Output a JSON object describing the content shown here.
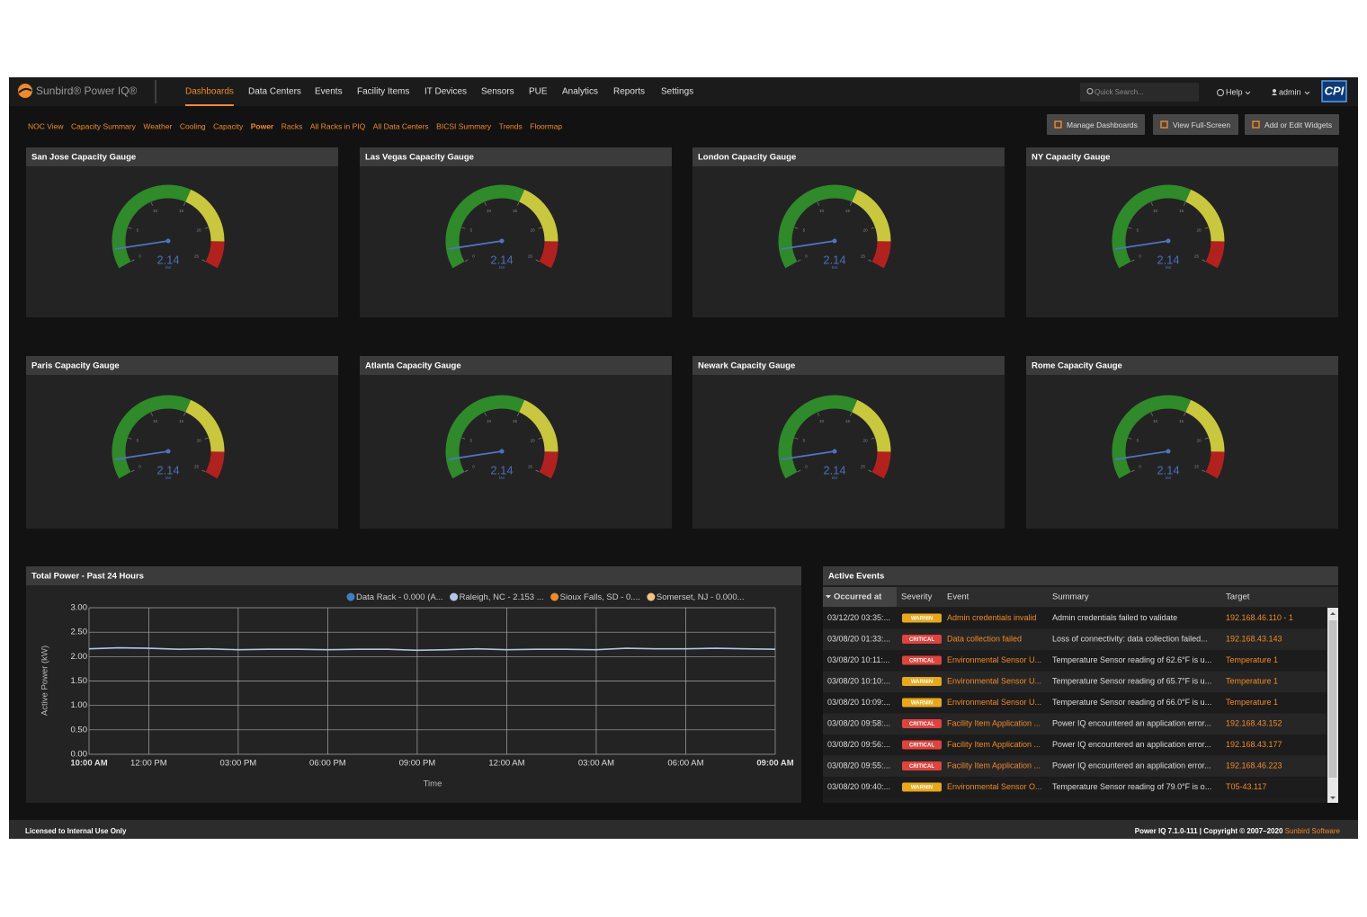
{
  "nav": {
    "logo": "Sunbird® Power IQ®",
    "items": [
      "Dashboards",
      "Data Centers",
      "Events",
      "Facility Items",
      "IT Devices",
      "Sensors",
      "PUE",
      "Analytics",
      "Reports",
      "Settings"
    ],
    "active": 0,
    "search": "Quick Search...",
    "help": "Help",
    "user": "admin",
    "brand": "CPI"
  },
  "subnav": {
    "links": [
      "NOC View",
      "Capacity Summary",
      "Weather",
      "Cooling",
      "Capacity",
      "Power",
      "Racks",
      "All Racks in PIQ",
      "All Data Centers",
      "BICSI Summary",
      "Trends",
      "Floormap"
    ],
    "active": 5,
    "buttons": [
      "Manage Dashboards",
      "View Full-Screen",
      "Add or Edit Widgets"
    ]
  },
  "chart_data": [
    {
      "type": "gauge",
      "title": "San Jose Capacity Gauge",
      "value": 2.14,
      "unit": "kW",
      "ylim": [
        0,
        25
      ],
      "yticks": [
        0,
        5,
        10,
        15,
        20,
        25
      ],
      "bands": [
        {
          "from": 0,
          "to": 15,
          "color": "#2f8a2a"
        },
        {
          "from": 15,
          "to": 22,
          "color": "#c9c73c"
        },
        {
          "from": 22,
          "to": 25,
          "color": "#b3211f"
        }
      ]
    },
    {
      "type": "gauge",
      "title": "Las Vegas Capacity Gauge",
      "value": 2.14,
      "unit": "kW",
      "ylim": [
        0,
        25
      ],
      "yticks": [
        0,
        5,
        10,
        15,
        20,
        25
      ],
      "bands": [
        {
          "from": 0,
          "to": 15,
          "color": "#2f8a2a"
        },
        {
          "from": 15,
          "to": 22,
          "color": "#c9c73c"
        },
        {
          "from": 22,
          "to": 25,
          "color": "#b3211f"
        }
      ]
    },
    {
      "type": "gauge",
      "title": "London Capacity Gauge",
      "value": 2.14,
      "unit": "kW",
      "ylim": [
        0,
        25
      ],
      "yticks": [
        0,
        5,
        10,
        15,
        20,
        25
      ],
      "bands": [
        {
          "from": 0,
          "to": 15,
          "color": "#2f8a2a"
        },
        {
          "from": 15,
          "to": 22,
          "color": "#c9c73c"
        },
        {
          "from": 22,
          "to": 25,
          "color": "#b3211f"
        }
      ]
    },
    {
      "type": "gauge",
      "title": "NY Capacity Gauge",
      "value": 2.14,
      "unit": "kW",
      "ylim": [
        0,
        25
      ],
      "yticks": [
        0,
        5,
        10,
        15,
        20,
        25
      ],
      "bands": [
        {
          "from": 0,
          "to": 15,
          "color": "#2f8a2a"
        },
        {
          "from": 15,
          "to": 22,
          "color": "#c9c73c"
        },
        {
          "from": 22,
          "to": 25,
          "color": "#b3211f"
        }
      ]
    },
    {
      "type": "gauge",
      "title": "Paris Capacity Gauge",
      "value": 2.14,
      "unit": "kW",
      "ylim": [
        0,
        25
      ],
      "yticks": [
        0,
        5,
        10,
        15,
        20,
        25
      ],
      "bands": [
        {
          "from": 0,
          "to": 15,
          "color": "#2f8a2a"
        },
        {
          "from": 15,
          "to": 22,
          "color": "#c9c73c"
        },
        {
          "from": 22,
          "to": 25,
          "color": "#b3211f"
        }
      ]
    },
    {
      "type": "gauge",
      "title": "Atlanta Capacity Gauge",
      "value": 2.14,
      "unit": "kW",
      "ylim": [
        0,
        25
      ],
      "yticks": [
        0,
        5,
        10,
        15,
        20,
        25
      ],
      "bands": [
        {
          "from": 0,
          "to": 15,
          "color": "#2f8a2a"
        },
        {
          "from": 15,
          "to": 22,
          "color": "#c9c73c"
        },
        {
          "from": 22,
          "to": 25,
          "color": "#b3211f"
        }
      ]
    },
    {
      "type": "gauge",
      "title": "Newark Capacity Gauge",
      "value": 2.14,
      "unit": "kW",
      "ylim": [
        0,
        25
      ],
      "yticks": [
        0,
        5,
        10,
        15,
        20,
        25
      ],
      "bands": [
        {
          "from": 0,
          "to": 15,
          "color": "#2f8a2a"
        },
        {
          "from": 15,
          "to": 22,
          "color": "#c9c73c"
        },
        {
          "from": 22,
          "to": 25,
          "color": "#b3211f"
        }
      ]
    },
    {
      "type": "gauge",
      "title": "Rome Capacity Gauge",
      "value": 2.14,
      "unit": "kW",
      "ylim": [
        0,
        25
      ],
      "yticks": [
        0,
        5,
        10,
        15,
        20,
        25
      ],
      "bands": [
        {
          "from": 0,
          "to": 15,
          "color": "#2f8a2a"
        },
        {
          "from": 15,
          "to": 22,
          "color": "#c9c73c"
        },
        {
          "from": 22,
          "to": 25,
          "color": "#b3211f"
        }
      ]
    },
    {
      "type": "line",
      "title": "Total Power - Past 24 Hours",
      "y_label": "Active Power (kW)",
      "x_label": "Time",
      "x": [
        0,
        1,
        2,
        3,
        4,
        5,
        6,
        7,
        8,
        9,
        10,
        11,
        12,
        13,
        14,
        15,
        16,
        17,
        18,
        19,
        20,
        21,
        22,
        23
      ],
      "xlim": [
        0,
        23
      ],
      "xticks": [
        {
          "value": 0,
          "label": "10:00 AM"
        },
        {
          "value": 2,
          "label": "12:00 PM"
        },
        {
          "value": 5,
          "label": "03:00 PM"
        },
        {
          "value": 8,
          "label": "06:00 PM"
        },
        {
          "value": 11,
          "label": "09:00 PM"
        },
        {
          "value": 14,
          "label": "12:00 AM"
        },
        {
          "value": 17,
          "label": "03:00 AM"
        },
        {
          "value": 20,
          "label": "06:00 AM"
        },
        {
          "value": 23,
          "label": "09:00 AM"
        }
      ],
      "ylim": [
        0,
        3
      ],
      "yticks": [
        {
          "value": 0,
          "label": "0.00"
        },
        {
          "value": 0.5,
          "label": "0.50"
        },
        {
          "value": 1,
          "label": "1.00"
        },
        {
          "value": 1.5,
          "label": "1.50"
        },
        {
          "value": 2,
          "label": "2.00"
        },
        {
          "value": 2.5,
          "label": "2.50"
        },
        {
          "value": 3,
          "label": "3.00"
        }
      ],
      "grid": true,
      "series": [
        {
          "name": "Data Rack - 0.000 (A...",
          "color": "#3f7fc1",
          "values": [
            null,
            null,
            null,
            null,
            null,
            null,
            null,
            null,
            null,
            null,
            null,
            null,
            null,
            null,
            null,
            null,
            null,
            null,
            null,
            null,
            null,
            null,
            null,
            null
          ]
        },
        {
          "name": "Raleigh, NC - 2.153 ...",
          "color": "#b4c3e6",
          "values": [
            2.16,
            2.18,
            2.17,
            2.15,
            2.16,
            2.14,
            2.15,
            2.15,
            2.14,
            2.15,
            2.15,
            2.13,
            2.14,
            2.16,
            2.14,
            2.15,
            2.15,
            2.14,
            2.17,
            2.16,
            2.16,
            2.17,
            2.16,
            2.15
          ]
        },
        {
          "name": "Sioux Falls, SD - 0....",
          "color": "#f08a24",
          "values": [
            null,
            null,
            null,
            null,
            null,
            null,
            null,
            null,
            null,
            null,
            null,
            null,
            null,
            null,
            null,
            null,
            null,
            null,
            null,
            null,
            null,
            null,
            null,
            null
          ]
        },
        {
          "name": "Somerset, NJ - 0.000...",
          "color": "#f5c27e",
          "values": [
            null,
            null,
            null,
            null,
            null,
            null,
            null,
            null,
            null,
            null,
            null,
            null,
            null,
            null,
            null,
            null,
            null,
            null,
            null,
            null,
            null,
            null,
            null,
            null
          ]
        }
      ]
    }
  ],
  "events": {
    "title": "Active Events",
    "columns": [
      "Occurred at",
      "Severity",
      "Event",
      "Summary",
      "Target"
    ],
    "badge_colors": {
      "WARNIN": "#e9a816",
      "CRITICAL": "#e2423d"
    },
    "rows": [
      [
        "03/12/20 03:35:...",
        "WARNIN",
        "Admin credentials invalid",
        "Admin credentials failed to validate",
        "192.168.46.110 - 1"
      ],
      [
        "03/08/20 01:33:...",
        "CRITICAL",
        "Data collection failed",
        "Loss of connectivity: data collection failed...",
        "192.168.43.143"
      ],
      [
        "03/08/20 10:11:...",
        "CRITICAL",
        "Environmental Sensor U...",
        "Temperature Sensor reading of 62.6°F is u...",
        "Temperature 1"
      ],
      [
        "03/08/20 10:10:...",
        "WARNIN",
        "Environmental Sensor U...",
        "Temperature Sensor reading of 65.7°F is u...",
        "Temperature 1"
      ],
      [
        "03/08/20 10:09:...",
        "WARNIN",
        "Environmental Sensor U...",
        "Temperature Sensor reading of 66.0°F is u...",
        "Temperature 1"
      ],
      [
        "03/08/20 09:58:...",
        "CRITICAL",
        "Facility Item Application ...",
        "Power IQ encountered an application error...",
        "192.168.43.152"
      ],
      [
        "03/08/20 09:56:...",
        "CRITICAL",
        "Facility Item Application ...",
        "Power IQ encountered an application error...",
        "192.168.43.177"
      ],
      [
        "03/08/20 09:55:...",
        "CRITICAL",
        "Facility Item Application ...",
        "Power IQ encountered an application error...",
        "192.168.46.223"
      ],
      [
        "03/08/20 09:40:...",
        "WARNIN",
        "Environmental Sensor O...",
        "Temperature Sensor reading of 79.0°F is o...",
        "T05-43.117"
      ]
    ]
  },
  "footer": {
    "license": "Licensed to Internal Use Only",
    "version": "Power IQ 7.1.0-111 | Copyright © 2007–2020 ",
    "vendor": "Sunbird Software"
  }
}
